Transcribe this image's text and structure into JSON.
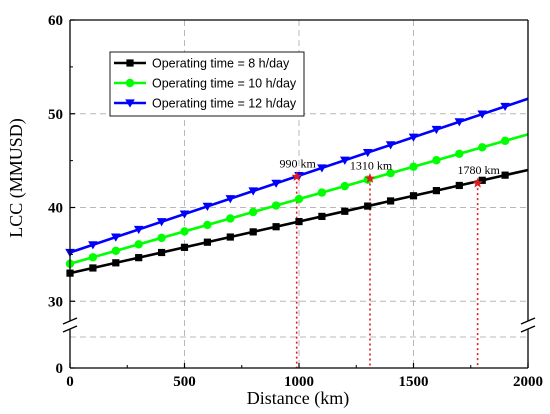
{
  "chart_data": {
    "type": "line",
    "xlabel": "Distance (km)",
    "ylabel": "LCC (MMUSD)",
    "xlim": [
      0,
      2000
    ],
    "ylim_broken": [
      [
        0,
        2
      ],
      [
        28,
        60
      ]
    ],
    "x_ticks": [
      0,
      500,
      1000,
      1500,
      2000
    ],
    "y_ticks": [
      0,
      30,
      40,
      50,
      60
    ],
    "grid": true,
    "legend_position": "top-left",
    "series": [
      {
        "name": "Operating time = 8 h/day",
        "color": "#000000",
        "marker": "square",
        "x": [
          0,
          2000
        ],
        "y": [
          33.0,
          44.0
        ],
        "marker_x": [
          0,
          100,
          200,
          300,
          400,
          500,
          600,
          700,
          800,
          900,
          1000,
          1100,
          1200,
          1300,
          1400,
          1500,
          1600,
          1700,
          1800,
          1900
        ]
      },
      {
        "name": "Operating time = 10 h/day",
        "color": "#00ff00",
        "marker": "circle",
        "x": [
          0,
          2000
        ],
        "y": [
          34.0,
          47.8
        ],
        "marker_x": [
          0,
          100,
          200,
          300,
          400,
          500,
          600,
          700,
          800,
          900,
          1000,
          1100,
          1200,
          1300,
          1400,
          1500,
          1600,
          1700,
          1800,
          1900
        ]
      },
      {
        "name": "Operating time = 12 h/day",
        "color": "#0000ff",
        "marker": "triangle-down",
        "x": [
          0,
          2000
        ],
        "y": [
          35.2,
          51.6
        ],
        "marker_x": [
          0,
          100,
          200,
          300,
          400,
          500,
          600,
          700,
          800,
          900,
          1000,
          1100,
          1200,
          1300,
          1400,
          1500,
          1600,
          1700,
          1800,
          1900
        ]
      }
    ],
    "annotations": [
      {
        "label": "990 km",
        "x": 990,
        "y": 43.3,
        "color": "#e31a1c"
      },
      {
        "label": "1310 km",
        "x": 1310,
        "y": 43.1,
        "color": "#e31a1c"
      },
      {
        "label": "1780 km",
        "x": 1780,
        "y": 42.6,
        "color": "#e31a1c"
      }
    ]
  }
}
